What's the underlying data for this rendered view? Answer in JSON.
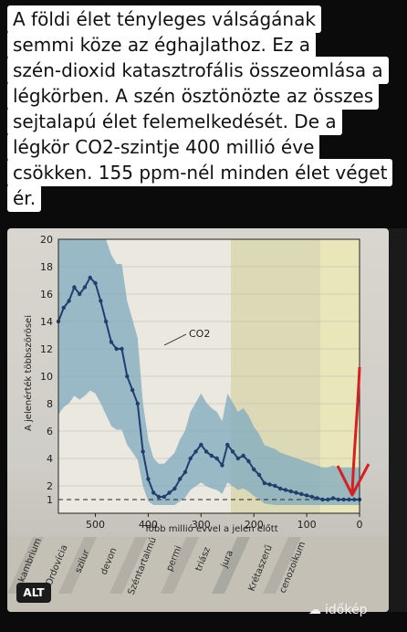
{
  "caption": {
    "lines": [
      "A földi élet tényleges válságának",
      "semmi köze az éghajlathoz. Ez a",
      "szén-dioxid katasztrofális összeomlása a",
      "légkörben. A szén ösztönözte az összes",
      "sejtalapú élet felemelkedését. De a",
      "légkör CO2-szintje 400 millió éve",
      "csökken. 155 ppm-nél minden élet véget",
      "ér."
    ]
  },
  "badge": {
    "alt": "ALT"
  },
  "brand": {
    "name": "időkép",
    "icon": "cloud-icon"
  },
  "chart_data": {
    "type": "line",
    "ylabel": "A jelenérték többszörösei",
    "xlabel": "Több millió évvel a jelen előtt",
    "series_label": "CO2",
    "x_ticks": [
      "500",
      "400",
      "300",
      "200",
      "100",
      "0"
    ],
    "y_ticks": [
      "1",
      "2",
      "4",
      "6",
      "8",
      "10",
      "12",
      "14",
      "16",
      "18",
      "20"
    ],
    "xlim": [
      570,
      0
    ],
    "ylim": [
      0,
      20
    ],
    "reference_line": 1,
    "periods": [
      "kambrium",
      "Ordovícia",
      "szilur",
      "devon",
      "Széntartalmú",
      "permi",
      "triász",
      "jura",
      "Krétaszerű",
      "cenozoikum"
    ],
    "series": [
      {
        "name": "CO2",
        "x": [
          570,
          560,
          550,
          540,
          530,
          520,
          510,
          500,
          490,
          480,
          470,
          460,
          450,
          440,
          430,
          420,
          410,
          400,
          390,
          380,
          370,
          360,
          350,
          340,
          330,
          320,
          310,
          300,
          290,
          280,
          270,
          260,
          250,
          240,
          230,
          220,
          210,
          200,
          190,
          180,
          170,
          160,
          150,
          140,
          130,
          120,
          110,
          100,
          90,
          80,
          70,
          60,
          50,
          40,
          30,
          20,
          10,
          0
        ],
        "y": [
          14,
          15,
          15.5,
          16.5,
          16,
          16.5,
          17.2,
          16.8,
          15.5,
          14,
          12.5,
          12,
          12,
          10,
          9,
          8,
          4.5,
          2.5,
          1.5,
          1.2,
          1.2,
          1.5,
          1.8,
          2.5,
          3,
          4,
          4.5,
          5,
          4.5,
          4.2,
          4,
          3.5,
          5,
          4.5,
          4,
          4.2,
          3.8,
          3.2,
          2.8,
          2.2,
          2.1,
          2,
          1.8,
          1.7,
          1.6,
          1.5,
          1.4,
          1.3,
          1.2,
          1.1,
          1.0,
          1.0,
          1.1,
          1.0,
          1.0,
          1.0,
          1.0,
          1.0
        ]
      }
    ]
  },
  "colors": {
    "band": "#7fa9bf",
    "line": "#1f3f6e",
    "panel_light": "#e9e6dc",
    "mesozoic": "#d9d7b4",
    "cenozoic": "#e8e6b8",
    "arrow": "#d81f1f"
  },
  "annotation": {
    "arrow_color_name": "red-arrow"
  }
}
